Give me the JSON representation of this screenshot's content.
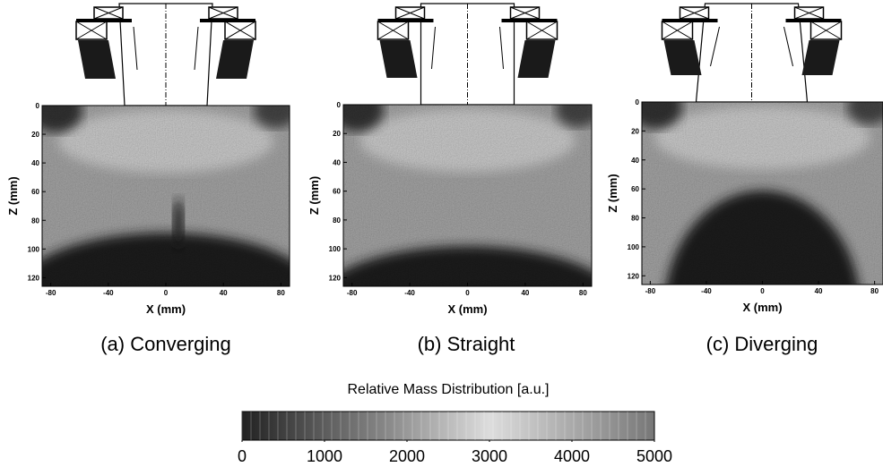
{
  "panels": [
    {
      "caption": "(a) Converging",
      "xlabel": "X (mm)",
      "ylabel": "Z (mm)",
      "xlim": [
        -86,
        86
      ],
      "ylim": [
        0,
        126
      ],
      "xticks": [
        -80,
        -40,
        0,
        40,
        80
      ],
      "yticks": [
        0,
        20,
        40,
        60,
        80,
        100,
        120
      ]
    },
    {
      "caption": "(b) Straight",
      "xlabel": "X (mm)",
      "ylabel": "Z (mm)",
      "xlim": [
        -86,
        86
      ],
      "ylim": [
        0,
        126
      ],
      "xticks": [
        -80,
        -40,
        0,
        40,
        80
      ],
      "yticks": [
        0,
        20,
        40,
        60,
        80,
        100,
        120
      ]
    },
    {
      "caption": "(c) Diverging",
      "xlabel": "X (mm)",
      "ylabel": "Z (mm)",
      "xlim": [
        -86,
        86
      ],
      "ylim": [
        0,
        126
      ],
      "xticks": [
        -80,
        -40,
        0,
        40,
        80
      ],
      "yticks": [
        0,
        20,
        40,
        60,
        80,
        100,
        120
      ]
    }
  ],
  "colorbar": {
    "label": "Relative Mass Distribution [a.u.]",
    "lim": [
      0,
      5000
    ],
    "ticks": [
      0,
      1000,
      2000,
      3000,
      4000,
      5000
    ]
  }
}
